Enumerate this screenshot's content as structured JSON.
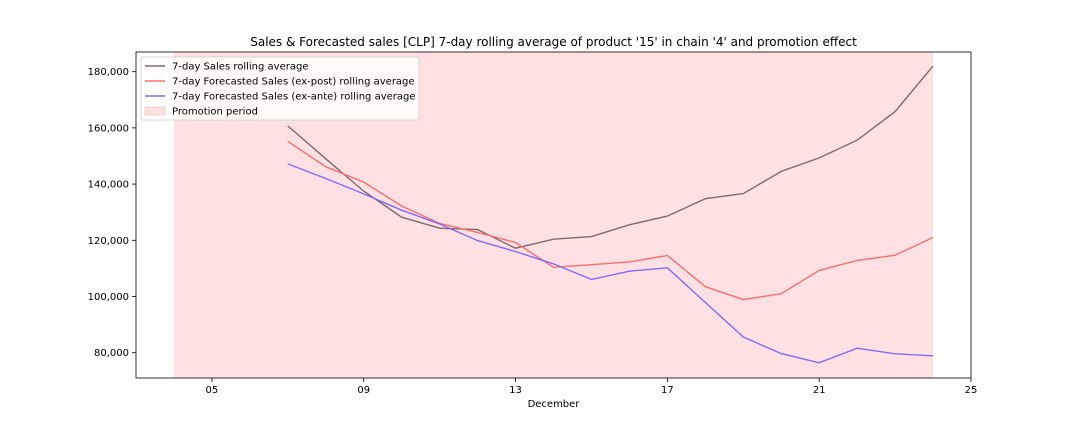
{
  "chart_data": {
    "type": "line",
    "title": "Sales & Forecasted sales [CLP] 7-day rolling average of product '15' in chain '4' and promotion effect",
    "xlabel": "December",
    "ylabel": "",
    "x_unit": "day of December",
    "xlim": [
      3,
      25
    ],
    "ylim": [
      71000,
      187000
    ],
    "x_ticks": [
      5,
      9,
      13,
      17,
      21,
      25
    ],
    "x_tick_labels": [
      "05",
      "09",
      "13",
      "17",
      "21",
      "25"
    ],
    "y_ticks": [
      80000,
      100000,
      120000,
      140000,
      160000,
      180000
    ],
    "y_tick_labels": [
      "80,000",
      "100,000",
      "120,000",
      "140,000",
      "160,000",
      "180,000"
    ],
    "grid": false,
    "legend_position": "top-left",
    "promotion_period": {
      "label": "Promotion period",
      "start": 4,
      "end": 24,
      "color": "#ffe0e3"
    },
    "series": [
      {
        "name": "7-day Sales rolling average",
        "color": "#7f6b6b",
        "x": [
          7,
          8,
          9,
          10,
          11,
          12,
          13,
          14,
          15,
          16,
          17,
          18,
          19,
          20,
          21,
          22,
          23,
          24
        ],
        "values": [
          160700,
          149000,
          137500,
          128200,
          124300,
          123800,
          117200,
          120400,
          121300,
          125500,
          128600,
          134800,
          136600,
          144500,
          149300,
          155600,
          165800,
          182000
        ]
      },
      {
        "name": "7-day Forecasted Sales (ex-post) rolling average",
        "color": "#ff6f6f",
        "x": [
          7,
          8,
          9,
          10,
          11,
          12,
          13,
          14,
          15,
          16,
          17,
          18,
          19,
          20,
          21,
          22,
          23,
          24
        ],
        "values": [
          155200,
          146200,
          140700,
          132200,
          126000,
          122800,
          119200,
          110400,
          111300,
          112300,
          114600,
          103500,
          98900,
          101000,
          109300,
          112800,
          114700,
          121000
        ]
      },
      {
        "name": "7-day Forecasted Sales (ex-ante) rolling average",
        "color": "#7b6cff",
        "x": [
          7,
          8,
          9,
          10,
          11,
          12,
          13,
          14,
          15,
          16,
          17,
          18,
          19,
          20,
          21,
          22,
          23,
          24
        ],
        "values": [
          147200,
          142000,
          136500,
          130700,
          125800,
          119900,
          116000,
          111600,
          106100,
          109000,
          110200,
          97900,
          85600,
          79700,
          76400,
          81600,
          79600,
          78900
        ]
      }
    ]
  }
}
